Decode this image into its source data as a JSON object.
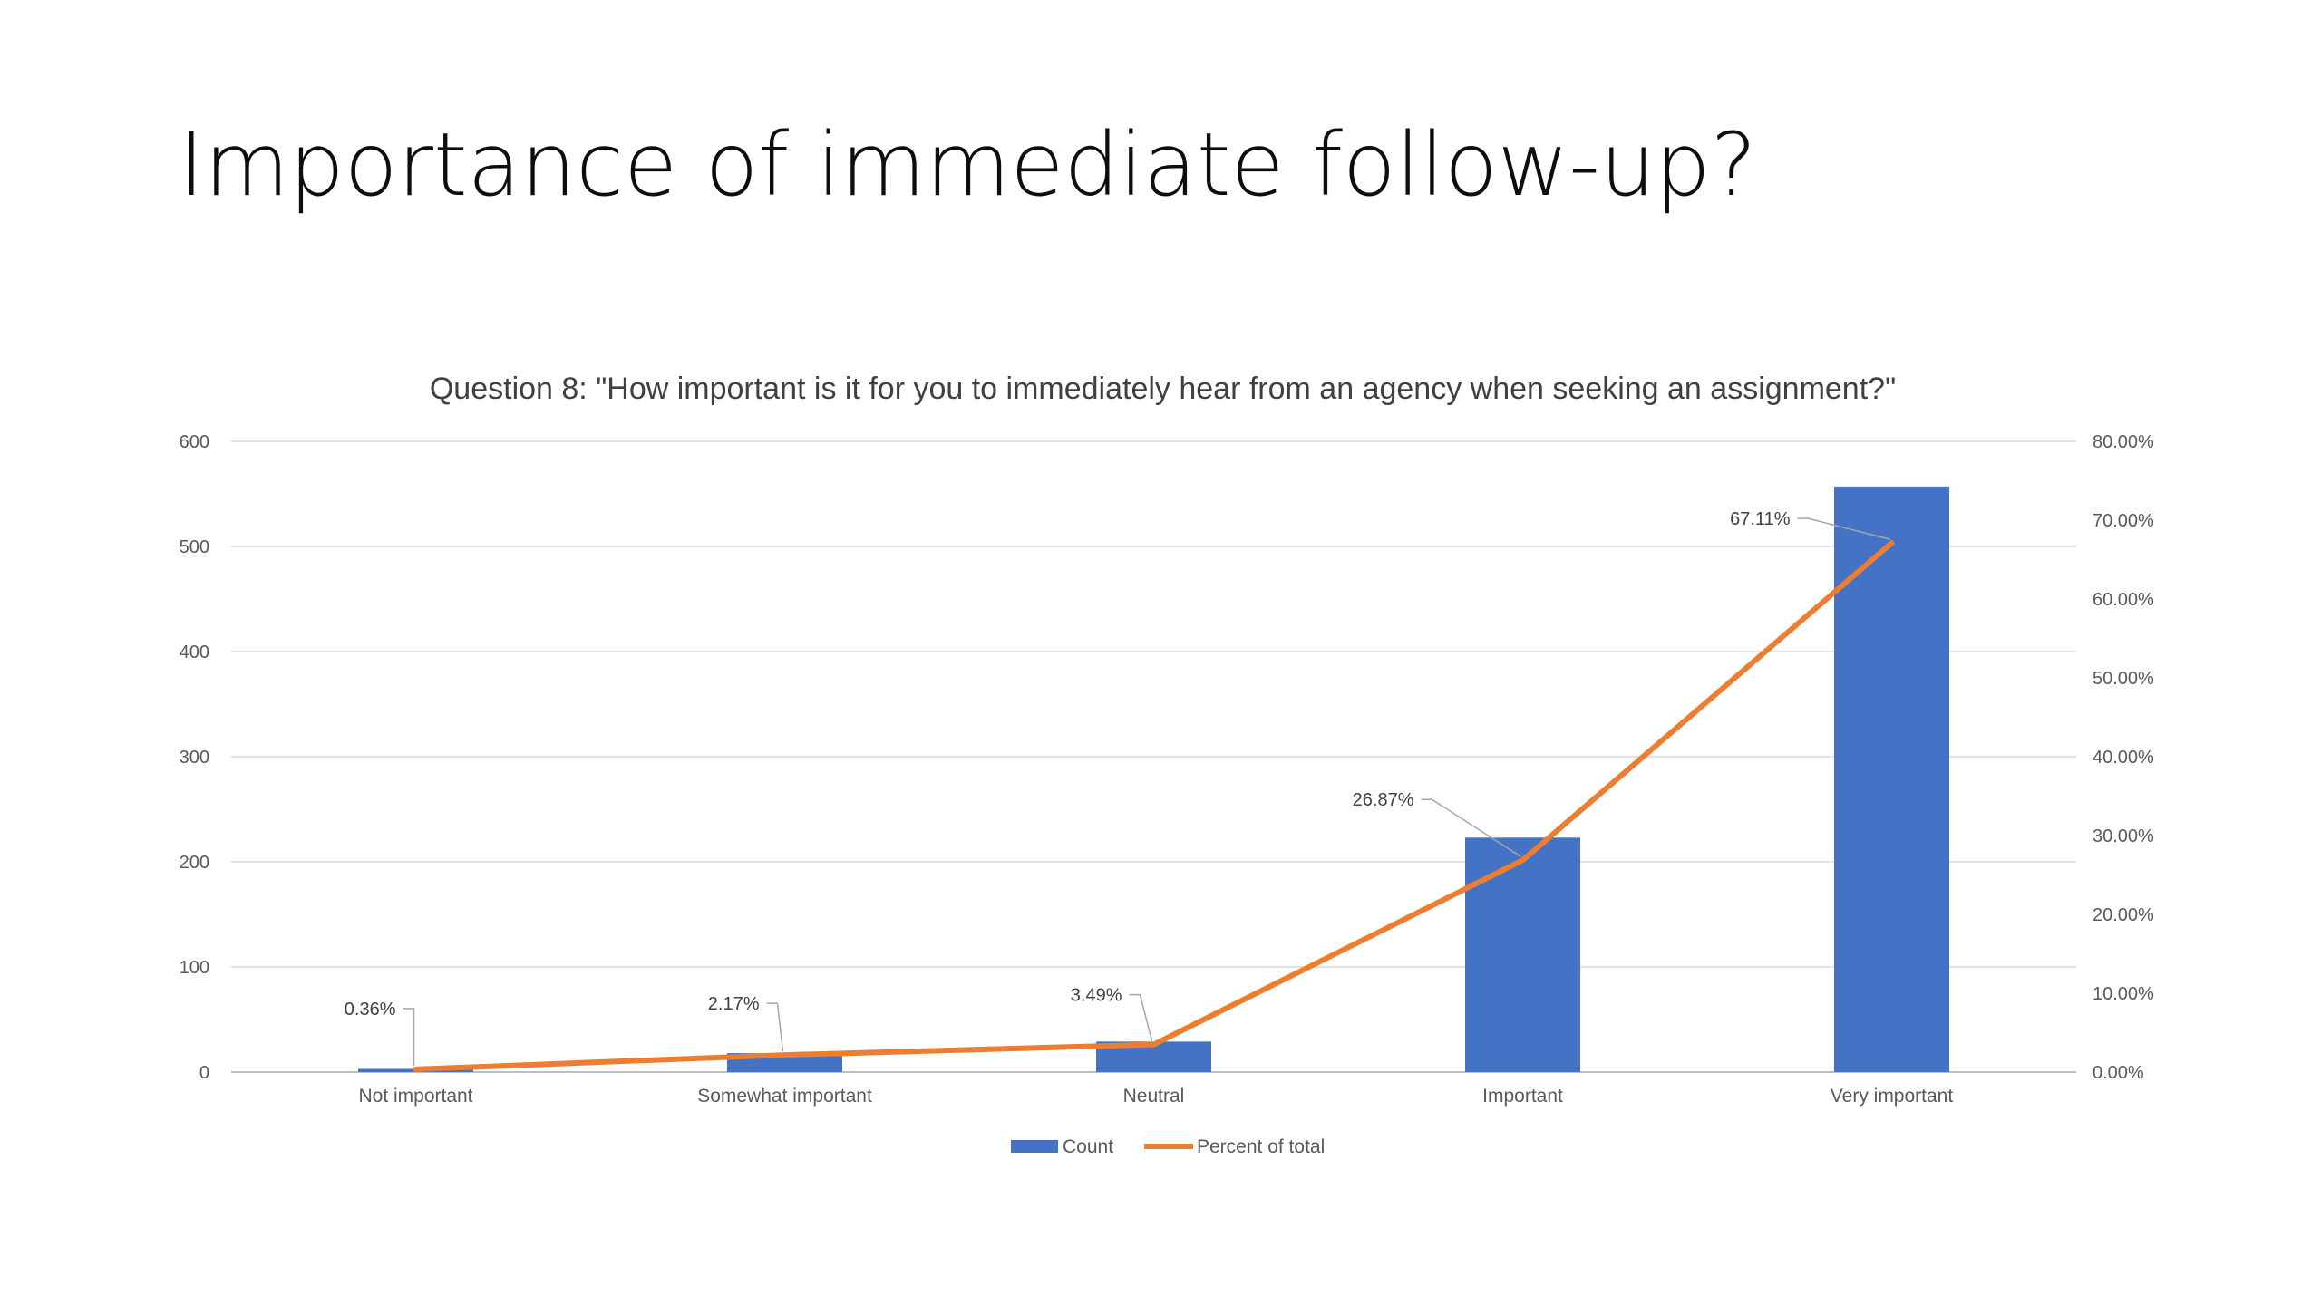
{
  "slide": {
    "title": "Importance of immediate follow-up?"
  },
  "chart_data": {
    "type": "bar",
    "title": "Question 8: \"How important is it for you to immediately hear from an agency when seeking an assignment?\"",
    "categories": [
      "Not important",
      "Somewhat important",
      "Neutral",
      "Important",
      "Very important"
    ],
    "series": [
      {
        "name": "Count",
        "type": "bar",
        "axis": "left",
        "color": "#4472C4",
        "values": [
          3,
          18,
          29,
          223,
          557
        ]
      },
      {
        "name": "Percent of total",
        "type": "line",
        "axis": "right",
        "color": "#ED7D31",
        "values": [
          0.36,
          2.17,
          3.49,
          26.87,
          67.11
        ],
        "labels": [
          "0.36%",
          "2.17%",
          "3.49%",
          "26.87%",
          "67.11%"
        ]
      }
    ],
    "y_left": {
      "range": [
        0,
        600
      ],
      "ticks": [
        0,
        100,
        200,
        300,
        400,
        500,
        600
      ],
      "tick_labels": [
        "0",
        "100",
        "200",
        "300",
        "400",
        "500",
        "600"
      ]
    },
    "y_right": {
      "range": [
        0,
        80
      ],
      "ticks": [
        0,
        10,
        20,
        30,
        40,
        50,
        60,
        70,
        80
      ],
      "tick_labels": [
        "0.00%",
        "10.00%",
        "20.00%",
        "30.00%",
        "40.00%",
        "50.00%",
        "60.00%",
        "70.00%",
        "80.00%"
      ]
    },
    "grid": true,
    "legend_position": "bottom-center"
  }
}
